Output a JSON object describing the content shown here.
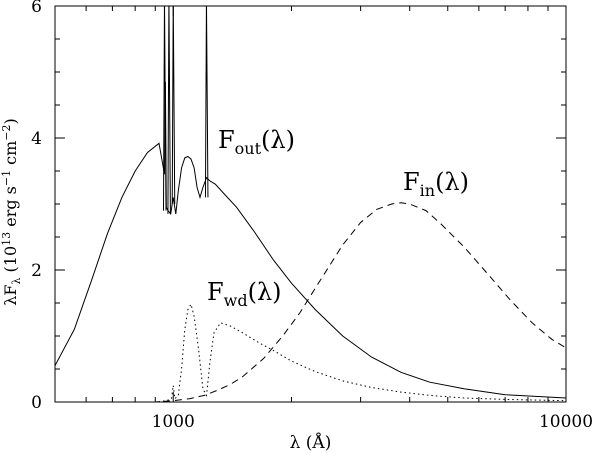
{
  "chart_data": {
    "type": "line",
    "xlabel": "λ (Å)",
    "ylabel_parts": [
      "λF",
      "λ",
      " (10",
      "13",
      " erg s",
      "−1",
      " cm",
      "−2",
      ")"
    ],
    "x_scale": "log",
    "xlim": [
      500,
      10000
    ],
    "ylim": [
      0,
      6
    ],
    "x_ticks": [
      1000,
      10000
    ],
    "x_tick_labels": [
      "1000",
      "10000"
    ],
    "y_ticks": [
      0,
      2,
      4,
      6
    ],
    "y_tick_labels": [
      "0",
      "2",
      "4",
      "6"
    ],
    "series": [
      {
        "name": "F_out(λ)",
        "label_main": "F",
        "label_sub": "out",
        "label_tail": "(λ)",
        "style": "solid",
        "x": [
          500,
          560,
          620,
          680,
          740,
          800,
          860,
          920,
          950,
          955,
          960,
          970,
          985,
          1000,
          1015,
          1030,
          1050,
          1070,
          1090,
          1110,
          1130,
          1150,
          1170,
          1190,
          1215,
          1240,
          1280,
          1350,
          1450,
          1600,
          1800,
          2000,
          2300,
          2700,
          3200,
          3800,
          4500,
          5500,
          7000,
          10000
        ],
        "y": [
          0.55,
          1.1,
          1.85,
          2.55,
          3.1,
          3.5,
          3.78,
          3.92,
          3.45,
          4.85,
          2.95,
          2.9,
          2.85,
          3.1,
          2.85,
          3.2,
          3.55,
          3.7,
          3.72,
          3.68,
          3.55,
          3.25,
          3.1,
          3.25,
          3.4,
          3.35,
          3.3,
          3.15,
          2.95,
          2.6,
          2.15,
          1.8,
          1.4,
          1.0,
          0.68,
          0.45,
          0.3,
          0.2,
          0.11,
          0.06
        ]
      },
      {
        "name": "F_in(λ)",
        "label_main": "F",
        "label_sub": "in",
        "label_tail": "(λ)",
        "style": "dashed",
        "x": [
          500,
          900,
          1000,
          1100,
          1200,
          1300,
          1400,
          1500,
          1700,
          1900,
          2100,
          2400,
          2700,
          3000,
          3300,
          3600,
          3800,
          4000,
          4400,
          4800,
          5500,
          6300,
          7200,
          8200,
          9200,
          10000
        ],
        "y": [
          0,
          0,
          0.02,
          0.05,
          0.1,
          0.18,
          0.27,
          0.38,
          0.66,
          1.0,
          1.35,
          1.9,
          2.38,
          2.72,
          2.92,
          3.0,
          3.02,
          3.0,
          2.9,
          2.7,
          2.35,
          1.95,
          1.55,
          1.2,
          0.95,
          0.82
        ]
      },
      {
        "name": "F_wd(λ)",
        "label_main": "F",
        "label_sub": "wd",
        "label_tail": "(λ)",
        "style": "dotted",
        "x": [
          500,
          900,
          960,
          990,
          1000,
          1010,
          1030,
          1050,
          1070,
          1090,
          1110,
          1130,
          1160,
          1190,
          1215,
          1240,
          1270,
          1320,
          1400,
          1500,
          1650,
          1800,
          2000,
          2300,
          2700,
          3200,
          3800,
          4500,
          5500,
          7000,
          10000
        ],
        "y": [
          0,
          0,
          0.02,
          0.05,
          0.25,
          0.05,
          0.1,
          0.5,
          1.1,
          1.4,
          1.48,
          1.3,
          0.8,
          0.2,
          0.1,
          0.6,
          1.05,
          1.2,
          1.15,
          1.05,
          0.9,
          0.78,
          0.62,
          0.46,
          0.32,
          0.22,
          0.15,
          0.1,
          0.06,
          0.04,
          0.02
        ]
      }
    ]
  }
}
